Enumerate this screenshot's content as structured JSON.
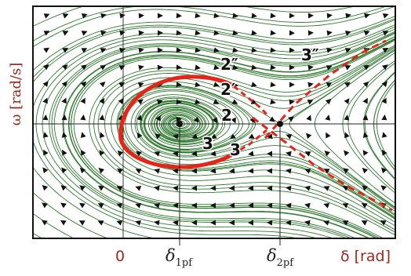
{
  "figure": {
    "y_axis_label": "ω [rad/s]",
    "x_axis_label": "δ [rad]",
    "origin_tick": "0",
    "equilibria": [
      {
        "symbol": "δ",
        "subscript": "1pf",
        "type": "stable focus"
      },
      {
        "symbol": "δ",
        "subscript": "2pf",
        "type": "saddle"
      }
    ],
    "curve_labels": [
      "2″",
      "3″",
      "2′",
      "2",
      "3",
      "3"
    ],
    "colors": {
      "frame": "#111111",
      "streamlines": "#2f7a2f",
      "arrows": "#111111",
      "separatrix": "#e8231a",
      "labels": "#9a2a1e",
      "axes": "#222222"
    }
  }
}
